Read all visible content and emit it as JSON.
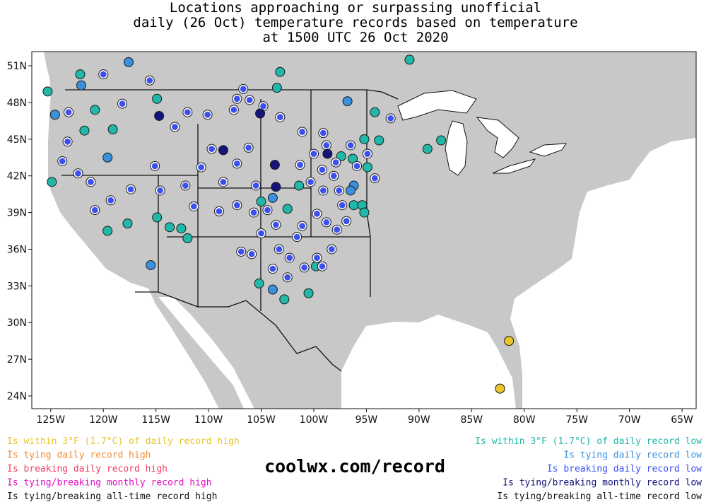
{
  "title": [
    "Locations approaching or surpassing unofficial",
    "daily (26 Oct) temperature records based on temperature",
    "at 1500 UTC 26 Oct 2020"
  ],
  "map": {
    "lon_range": [
      -126.8,
      -63.66
    ],
    "lat_range": [
      22.96,
      52.16
    ],
    "lon_ticks": [
      {
        "value": -125,
        "label": "125W"
      },
      {
        "value": -120,
        "label": "120W"
      },
      {
        "value": -115,
        "label": "115W"
      },
      {
        "value": -110,
        "label": "110W"
      },
      {
        "value": -105,
        "label": "105W"
      },
      {
        "value": -100,
        "label": "100W"
      },
      {
        "value": -95,
        "label": "95W"
      },
      {
        "value": -90,
        "label": "90W"
      },
      {
        "value": -85,
        "label": "85W"
      },
      {
        "value": -80,
        "label": "80W"
      },
      {
        "value": -75,
        "label": "75W"
      },
      {
        "value": -70,
        "label": "70W"
      },
      {
        "value": -65,
        "label": "65W"
      }
    ],
    "lat_ticks": [
      {
        "value": 51,
        "label": "51N"
      },
      {
        "value": 48,
        "label": "48N"
      },
      {
        "value": 45,
        "label": "45N"
      },
      {
        "value": 42,
        "label": "42N"
      },
      {
        "value": 39,
        "label": "39N"
      },
      {
        "value": 36,
        "label": "36N"
      },
      {
        "value": 33,
        "label": "33N"
      },
      {
        "value": 30,
        "label": "30N"
      },
      {
        "value": 27,
        "label": "27N"
      },
      {
        "value": 24,
        "label": "24N"
      }
    ]
  },
  "legend_high": [
    {
      "label": "Is within 3°F (1.7°C) of daily record high",
      "color": "#e8c52a",
      "points": [
        [
          -81.45,
          28.5
        ],
        [
          -82.3,
          24.6
        ]
      ]
    },
    {
      "label": "Is tying daily record high",
      "color": "#f08a30"
    },
    {
      "label": "Is breaking daily record high",
      "color": "#f03c64"
    },
    {
      "label": "Is tying/breaking monthly record high",
      "color": "#e010c0"
    },
    {
      "label": "Is tying/breaking all-time record high",
      "color": "#111111"
    }
  ],
  "legend_low": [
    {
      "label": "Is within 3°F (1.7°C) of daily record low",
      "color": "#22b8a8",
      "points": [
        [
          -90.9,
          51.5
        ],
        [
          -103.2,
          50.5
        ],
        [
          -122.2,
          50.3
        ],
        [
          -125.3,
          48.9
        ],
        [
          -120.8,
          47.4
        ],
        [
          -121.8,
          45.7
        ],
        [
          -119.1,
          45.8
        ],
        [
          -124.9,
          41.5
        ],
        [
          -119.6,
          37.5
        ],
        [
          -117.7,
          38.1
        ],
        [
          -113.7,
          37.8
        ],
        [
          -112.6,
          37.7
        ],
        [
          -112.0,
          36.9
        ],
        [
          -114.9,
          38.6
        ],
        [
          -105.2,
          33.2
        ],
        [
          -102.8,
          31.9
        ],
        [
          -100.5,
          32.4
        ],
        [
          -105.0,
          39.9
        ],
        [
          -101.4,
          41.2
        ],
        [
          -102.5,
          39.3
        ],
        [
          -96.2,
          39.6
        ],
        [
          -95.4,
          39.6
        ],
        [
          -95.2,
          39.0
        ],
        [
          -94.9,
          42.7
        ],
        [
          -97.4,
          43.6
        ],
        [
          -94.2,
          47.2
        ],
        [
          -95.2,
          45.0
        ],
        [
          -93.8,
          44.9
        ],
        [
          -89.2,
          44.2
        ],
        [
          -87.9,
          44.9
        ],
        [
          -114.9,
          48.3
        ],
        [
          -103.5,
          49.2
        ],
        [
          -99.8,
          34.6
        ],
        [
          -96.3,
          43.4
        ]
      ]
    },
    {
      "label": "Is tying daily record low",
      "color": "#3a90dc",
      "points": [
        [
          -117.6,
          51.3
        ],
        [
          -122.1,
          49.4
        ],
        [
          -96.8,
          48.1
        ],
        [
          -124.6,
          47.0
        ],
        [
          -119.6,
          43.5
        ],
        [
          -115.5,
          34.7
        ],
        [
          -103.9,
          32.7
        ],
        [
          -103.9,
          40.2
        ],
        [
          -96.2,
          41.2
        ],
        [
          -96.5,
          40.8
        ]
      ]
    },
    {
      "label": "Is breaking daily record low",
      "color": "#3c50f0",
      "points": [
        [
          -120.0,
          50.3
        ],
        [
          -115.6,
          49.8
        ],
        [
          -106.7,
          49.1
        ],
        [
          -107.3,
          48.3
        ],
        [
          -106.1,
          48.2
        ],
        [
          -107.6,
          47.4
        ],
        [
          -104.8,
          47.7
        ],
        [
          -103.2,
          46.8
        ],
        [
          -123.3,
          47.2
        ],
        [
          -118.2,
          47.9
        ],
        [
          -123.4,
          44.8
        ],
        [
          -123.9,
          43.2
        ],
        [
          -122.4,
          42.2
        ],
        [
          -121.2,
          41.5
        ],
        [
          -120.8,
          39.2
        ],
        [
          -119.3,
          40.0
        ],
        [
          -117.4,
          40.9
        ],
        [
          -115.1,
          42.8
        ],
        [
          -114.6,
          40.8
        ],
        [
          -113.2,
          46.0
        ],
        [
          -112.0,
          47.2
        ],
        [
          -110.1,
          47.0
        ],
        [
          -109.7,
          44.2
        ],
        [
          -112.2,
          41.2
        ],
        [
          -110.7,
          42.7
        ],
        [
          -111.4,
          39.5
        ],
        [
          -108.6,
          41.5
        ],
        [
          -109.0,
          39.1
        ],
        [
          -107.3,
          39.6
        ],
        [
          -106.2,
          44.3
        ],
        [
          -107.3,
          43.0
        ],
        [
          -105.5,
          41.2
        ],
        [
          -105.7,
          39.0
        ],
        [
          -104.4,
          39.2
        ],
        [
          -103.6,
          38.0
        ],
        [
          -105.0,
          37.3
        ],
        [
          -106.9,
          35.8
        ],
        [
          -105.9,
          35.6
        ],
        [
          -103.3,
          36.0
        ],
        [
          -102.3,
          35.3
        ],
        [
          -103.9,
          34.4
        ],
        [
          -102.5,
          33.7
        ],
        [
          -100.9,
          34.5
        ],
        [
          -99.2,
          34.6
        ],
        [
          -99.7,
          35.3
        ],
        [
          -101.6,
          37.0
        ],
        [
          -101.1,
          37.9
        ],
        [
          -99.7,
          38.9
        ],
        [
          -98.8,
          38.2
        ],
        [
          -97.8,
          37.6
        ],
        [
          -98.3,
          36.0
        ],
        [
          -96.9,
          38.3
        ],
        [
          -101.1,
          45.6
        ],
        [
          -101.3,
          42.9
        ],
        [
          -99.1,
          45.5
        ],
        [
          -98.8,
          44.5
        ],
        [
          -100.0,
          43.8
        ],
        [
          -97.9,
          43.1
        ],
        [
          -99.2,
          42.5
        ],
        [
          -100.3,
          41.5
        ],
        [
          -99.1,
          40.8
        ],
        [
          -98.1,
          42.0
        ],
        [
          -97.6,
          40.8
        ],
        [
          -97.3,
          39.6
        ],
        [
          -96.5,
          44.5
        ],
        [
          -95.9,
          42.8
        ],
        [
          -94.2,
          41.8
        ],
        [
          -92.7,
          46.7
        ],
        [
          -94.9,
          43.8
        ]
      ]
    },
    {
      "label": "Is tying/breaking monthly record low",
      "color": "#14147a",
      "points": [
        [
          -114.7,
          46.9
        ],
        [
          -108.6,
          44.1
        ],
        [
          -103.7,
          42.9
        ],
        [
          -105.1,
          47.1
        ],
        [
          -103.6,
          41.1
        ],
        [
          -98.7,
          43.8
        ]
      ]
    },
    {
      "label": "Is tying/breaking all-time record low",
      "color": "#111111"
    }
  ],
  "site": "coolwx.com/record"
}
